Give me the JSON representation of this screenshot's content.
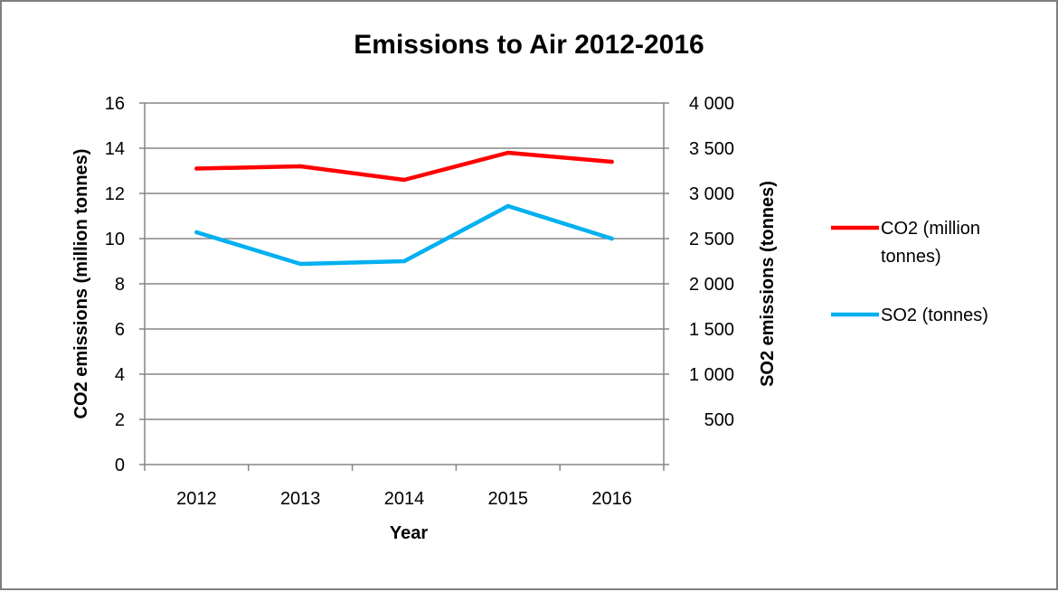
{
  "chart_data": {
    "type": "line",
    "title": "Emissions to Air 2012-2016",
    "xlabel": "Year",
    "ylabel": "CO2 emissions (million tonnes)",
    "y2label": "SO2 emissions (tonnes)",
    "categories": [
      "2012",
      "2013",
      "2014",
      "2015",
      "2016"
    ],
    "ylim": [
      0,
      16
    ],
    "y2lim": [
      0,
      4000
    ],
    "yticks": [
      "0",
      "2",
      "4",
      "6",
      "8",
      "10",
      "12",
      "14",
      "16"
    ],
    "y2ticks": [
      "500",
      "1 000",
      "1 500",
      "2 000",
      "2 500",
      "3 000",
      "3 500",
      "4 000"
    ],
    "grid": true,
    "legend_position": "right",
    "series": [
      {
        "name": "CO2 (million tonnes)",
        "legend_lines": [
          "CO2 (million",
          "tonnes)"
        ],
        "axis": "left",
        "color": "#ff0000",
        "values": [
          13.1,
          13.2,
          12.6,
          13.8,
          13.4
        ]
      },
      {
        "name": "SO2 (tonnes)",
        "legend_lines": [
          "SO2 (tonnes)"
        ],
        "axis": "right",
        "color": "#00b0f0",
        "values": [
          2570,
          2220,
          2250,
          2860,
          2500
        ]
      }
    ]
  }
}
